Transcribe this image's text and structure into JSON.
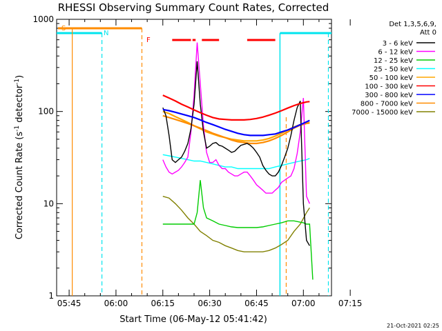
{
  "chart_data": {
    "type": "line",
    "title": "RHESSI Observing Summary Count Rates, Corrected",
    "xlabel": "Start Time (06-May-12 05:41:42)",
    "ylabel_main": "Corrected Count Rate (s",
    "ylabel_sup1": "-1",
    "ylabel_mid": " detector",
    "ylabel_sup2": "-1",
    "ylabel_end": ")",
    "footer": "21-Oct-2021 02:25",
    "y_scale": "log",
    "ylim": [
      1,
      1000
    ],
    "xlim_min": [
      0,
      88
    ],
    "x_ticks": [
      {
        "m": 4,
        "label": "05:45"
      },
      {
        "m": 19,
        "label": "06:00"
      },
      {
        "m": 34,
        "label": "06:15"
      },
      {
        "m": 49,
        "label": "06:30"
      },
      {
        "m": 64,
        "label": "06:45"
      },
      {
        "m": 79,
        "label": "07:00"
      },
      {
        "m": 94,
        "label": "07:15"
      }
    ],
    "y_ticks": [
      {
        "v": 1,
        "label": "1"
      },
      {
        "v": 10,
        "label": "10"
      },
      {
        "v": 100,
        "label": "100"
      },
      {
        "v": 1000,
        "label": "1000"
      }
    ],
    "legend_header": [
      "Det 1,3,5,6,9,",
      "Att 0"
    ],
    "series": [
      {
        "name": "3 - 6 keV",
        "color": "#000000",
        "x": [
          34,
          35,
          36,
          37,
          38,
          39,
          40,
          41,
          42,
          43,
          44,
          45,
          46,
          47,
          48,
          49,
          50,
          51,
          52,
          53,
          54,
          55,
          56,
          57,
          58,
          59,
          60,
          61,
          62,
          63,
          64,
          65,
          66,
          67,
          68,
          69,
          70,
          71,
          72,
          73,
          74,
          75,
          76,
          77,
          78,
          79,
          80,
          81
        ],
        "y": [
          110,
          90,
          55,
          30,
          28,
          30,
          32,
          37,
          45,
          65,
          120,
          350,
          120,
          60,
          40,
          42,
          45,
          46,
          43,
          42,
          40,
          38,
          36,
          37,
          40,
          43,
          44,
          45,
          43,
          40,
          36,
          32,
          26,
          23,
          21,
          20,
          20,
          22,
          26,
          32,
          40,
          55,
          80,
          110,
          130,
          10,
          4,
          3.5
        ]
      },
      {
        "name": "6 - 12 keV",
        "color": "#ff00ff",
        "x": [
          34,
          35,
          36,
          37,
          38,
          39,
          40,
          41,
          42,
          43,
          44,
          45,
          46,
          47,
          48,
          49,
          50,
          51,
          52,
          53,
          54,
          55,
          56,
          57,
          58,
          59,
          60,
          61,
          62,
          63,
          64,
          65,
          66,
          67,
          68,
          69,
          70,
          71,
          72,
          73,
          74,
          75,
          76,
          77,
          78,
          79,
          80,
          81
        ],
        "y": [
          30,
          25,
          22,
          21,
          22,
          23,
          25,
          28,
          32,
          60,
          150,
          560,
          200,
          70,
          36,
          28,
          28,
          30,
          26,
          24,
          24,
          22,
          21,
          20,
          20,
          21,
          22,
          22,
          20,
          18,
          16,
          15,
          14,
          13,
          13,
          13,
          14,
          15,
          17,
          18,
          19,
          20,
          24,
          35,
          60,
          140,
          12,
          10
        ]
      },
      {
        "name": "12 - 25 keV",
        "color": "#00cc00",
        "x": [
          34,
          36,
          38,
          40,
          42,
          44,
          45,
          46,
          47,
          48,
          50,
          52,
          54,
          56,
          58,
          60,
          62,
          64,
          66,
          68,
          70,
          72,
          74,
          76,
          78,
          79,
          80,
          81,
          82
        ],
        "y": [
          6,
          6,
          6,
          6,
          6,
          6,
          8,
          18,
          9,
          7,
          6.5,
          6,
          5.8,
          5.6,
          5.5,
          5.5,
          5.5,
          5.5,
          5.6,
          5.8,
          6,
          6.2,
          6.5,
          6.5,
          6.3,
          6.2,
          6,
          6,
          1.5
        ]
      },
      {
        "name": "25 - 50 keV",
        "color": "#00ffff",
        "x": [
          34,
          36,
          38,
          40,
          42,
          44,
          46,
          48,
          50,
          52,
          54,
          56,
          58,
          60,
          62,
          64,
          66,
          68,
          70,
          72,
          74,
          76,
          78,
          80,
          81
        ],
        "y": [
          34,
          33,
          32,
          31,
          30,
          29,
          29,
          28,
          27,
          26,
          25,
          25,
          24,
          24,
          24,
          24,
          24,
          24,
          25,
          26,
          27,
          28,
          29,
          30,
          31
        ]
      },
      {
        "name": "50 - 100 keV",
        "color": "#ffa500",
        "x": [
          34,
          36,
          38,
          40,
          42,
          44,
          46,
          48,
          50,
          52,
          54,
          56,
          58,
          60,
          62,
          64,
          66,
          68,
          70,
          72,
          74,
          76,
          78,
          80,
          81
        ],
        "y": [
          100,
          95,
          88,
          82,
          76,
          70,
          65,
          60,
          57,
          54,
          52,
          50,
          49,
          48,
          48,
          48,
          49,
          51,
          54,
          58,
          63,
          68,
          72,
          75,
          76
        ]
      },
      {
        "name": "100 - 300 keV",
        "color": "#ff0000",
        "x": [
          34,
          36,
          38,
          40,
          42,
          44,
          46,
          48,
          50,
          52,
          54,
          56,
          58,
          60,
          62,
          64,
          66,
          68,
          70,
          72,
          74,
          76,
          78,
          80,
          81
        ],
        "y": [
          150,
          140,
          130,
          120,
          112,
          104,
          97,
          91,
          86,
          83,
          82,
          81,
          81,
          81,
          82,
          84,
          87,
          91,
          96,
          102,
          109,
          116,
          122,
          127,
          128
        ]
      },
      {
        "name": "300 - 800 keV",
        "color": "#0000ff",
        "x": [
          34,
          36,
          38,
          40,
          42,
          44,
          46,
          48,
          50,
          52,
          54,
          56,
          58,
          60,
          62,
          64,
          66,
          68,
          70,
          72,
          74,
          76,
          78,
          80,
          81
        ],
        "y": [
          105,
          102,
          98,
          94,
          90,
          86,
          81,
          76,
          72,
          68,
          64,
          61,
          58,
          56,
          55,
          55,
          55,
          56,
          57,
          60,
          63,
          67,
          72,
          77,
          80
        ]
      },
      {
        "name": "800 - 7000 keV",
        "color": "#ff8c00",
        "x": [
          34,
          36,
          38,
          40,
          42,
          44,
          46,
          48,
          50,
          52,
          54,
          56,
          58,
          60,
          62,
          64,
          66,
          68,
          70,
          72,
          74,
          76,
          78,
          80,
          81
        ],
        "y": [
          90,
          86,
          82,
          78,
          74,
          70,
          66,
          62,
          58,
          55,
          52,
          49,
          47,
          46,
          45,
          45,
          46,
          48,
          51,
          55,
          60,
          66,
          71,
          74,
          75
        ]
      },
      {
        "name": "7000 - 15000 keV",
        "color": "#808000",
        "x": [
          34,
          36,
          38,
          40,
          42,
          44,
          46,
          48,
          50,
          52,
          54,
          56,
          58,
          60,
          62,
          64,
          66,
          68,
          70,
          72,
          74,
          76,
          78,
          80,
          81
        ],
        "y": [
          12,
          11.5,
          10,
          8.5,
          7,
          6,
          5,
          4.5,
          4,
          3.8,
          3.5,
          3.3,
          3.1,
          3,
          3,
          3,
          3,
          3.1,
          3.3,
          3.6,
          4,
          5,
          6,
          8,
          9
        ]
      }
    ],
    "attenuator": {
      "label_s": "S",
      "label_n": "N",
      "label_f": "F"
    }
  }
}
